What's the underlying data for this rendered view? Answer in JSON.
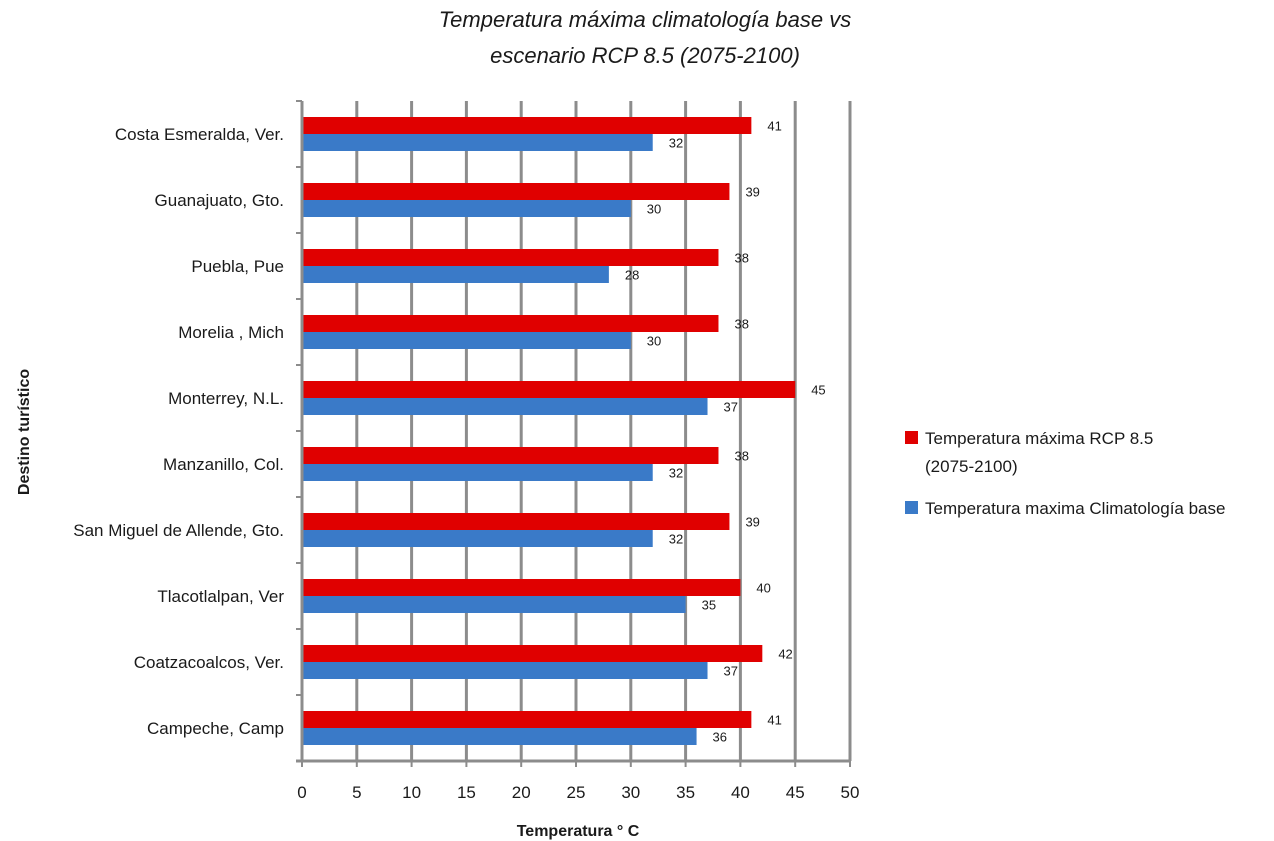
{
  "chart_data": {
    "type": "bar",
    "orientation": "horizontal",
    "title_lines": [
      "Temperatura máxima climatología base vs",
      "escenario RCP 8.5 (2075-2100)"
    ],
    "xlabel": "Temperatura ° C",
    "ylabel": "Destino turístico",
    "xlim": [
      0,
      50
    ],
    "x_ticks": [
      "0",
      "5",
      "10",
      "15",
      "20",
      "25",
      "30",
      "35",
      "40",
      "45",
      "50"
    ],
    "grid": "vertical",
    "legend_position": "right",
    "categories": [
      "Costa Esmeralda, Ver.",
      "Guanajuato, Gto.",
      "Puebla, Pue",
      "Morelia , Mich",
      "Monterrey, N.L.",
      "Manzanillo, Col.",
      "San Miguel de Allende, Gto.",
      "Tlacotlalpan, Ver",
      "Coatzacoalcos, Ver.",
      "Campeche, Camp"
    ],
    "series": [
      {
        "name_lines": [
          "Temperatura máxima RCP 8.5",
          "(2075-2100)"
        ],
        "color": "#e00000",
        "values": [
          41,
          39,
          38,
          38,
          45,
          38,
          39,
          40,
          42,
          41
        ]
      },
      {
        "name_lines": [
          "Temperatura maxima Climatología base"
        ],
        "color": "#3a7ac8",
        "values": [
          32,
          30,
          28,
          30,
          37,
          32,
          32,
          35,
          37,
          36
        ]
      }
    ]
  }
}
